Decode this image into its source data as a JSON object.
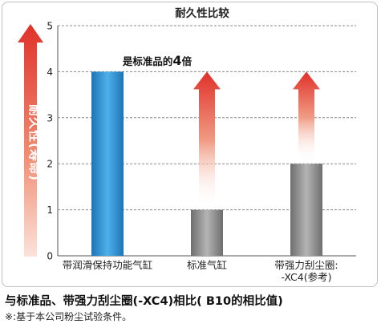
{
  "chart_data": {
    "type": "bar",
    "title": "耐久性比较",
    "ylabel": "耐久性(寿命)",
    "xlabel": "",
    "ylim": [
      0,
      5
    ],
    "yticks": [
      "0",
      "1",
      "2",
      "3",
      "4",
      "5"
    ],
    "categories": [
      [
        "带润滑保持功能气缸"
      ],
      [
        "标准气缸"
      ],
      [
        "带强力刮尘圈:",
        "-XC4(参考)"
      ]
    ],
    "values": [
      4,
      1,
      2
    ],
    "bar_colors": [
      "#2a8fd4",
      "#8c8c8c",
      "#8c8c8c"
    ],
    "arrows": [
      false,
      true,
      true
    ],
    "arrow_target": 4,
    "annotation": "是标准品的4倍",
    "grid": true,
    "gridline_style": "dashed"
  },
  "footer": {
    "main": "与标准品、带强力刮尘圈(-XC4)相比( B10的相比值)",
    "note": "※:基于本公司粉尘试验条件。"
  },
  "colors": {
    "accent_red": "#e0312a",
    "bar_blue": "#2a8fd4",
    "bar_gray": "#8c8c8c"
  }
}
